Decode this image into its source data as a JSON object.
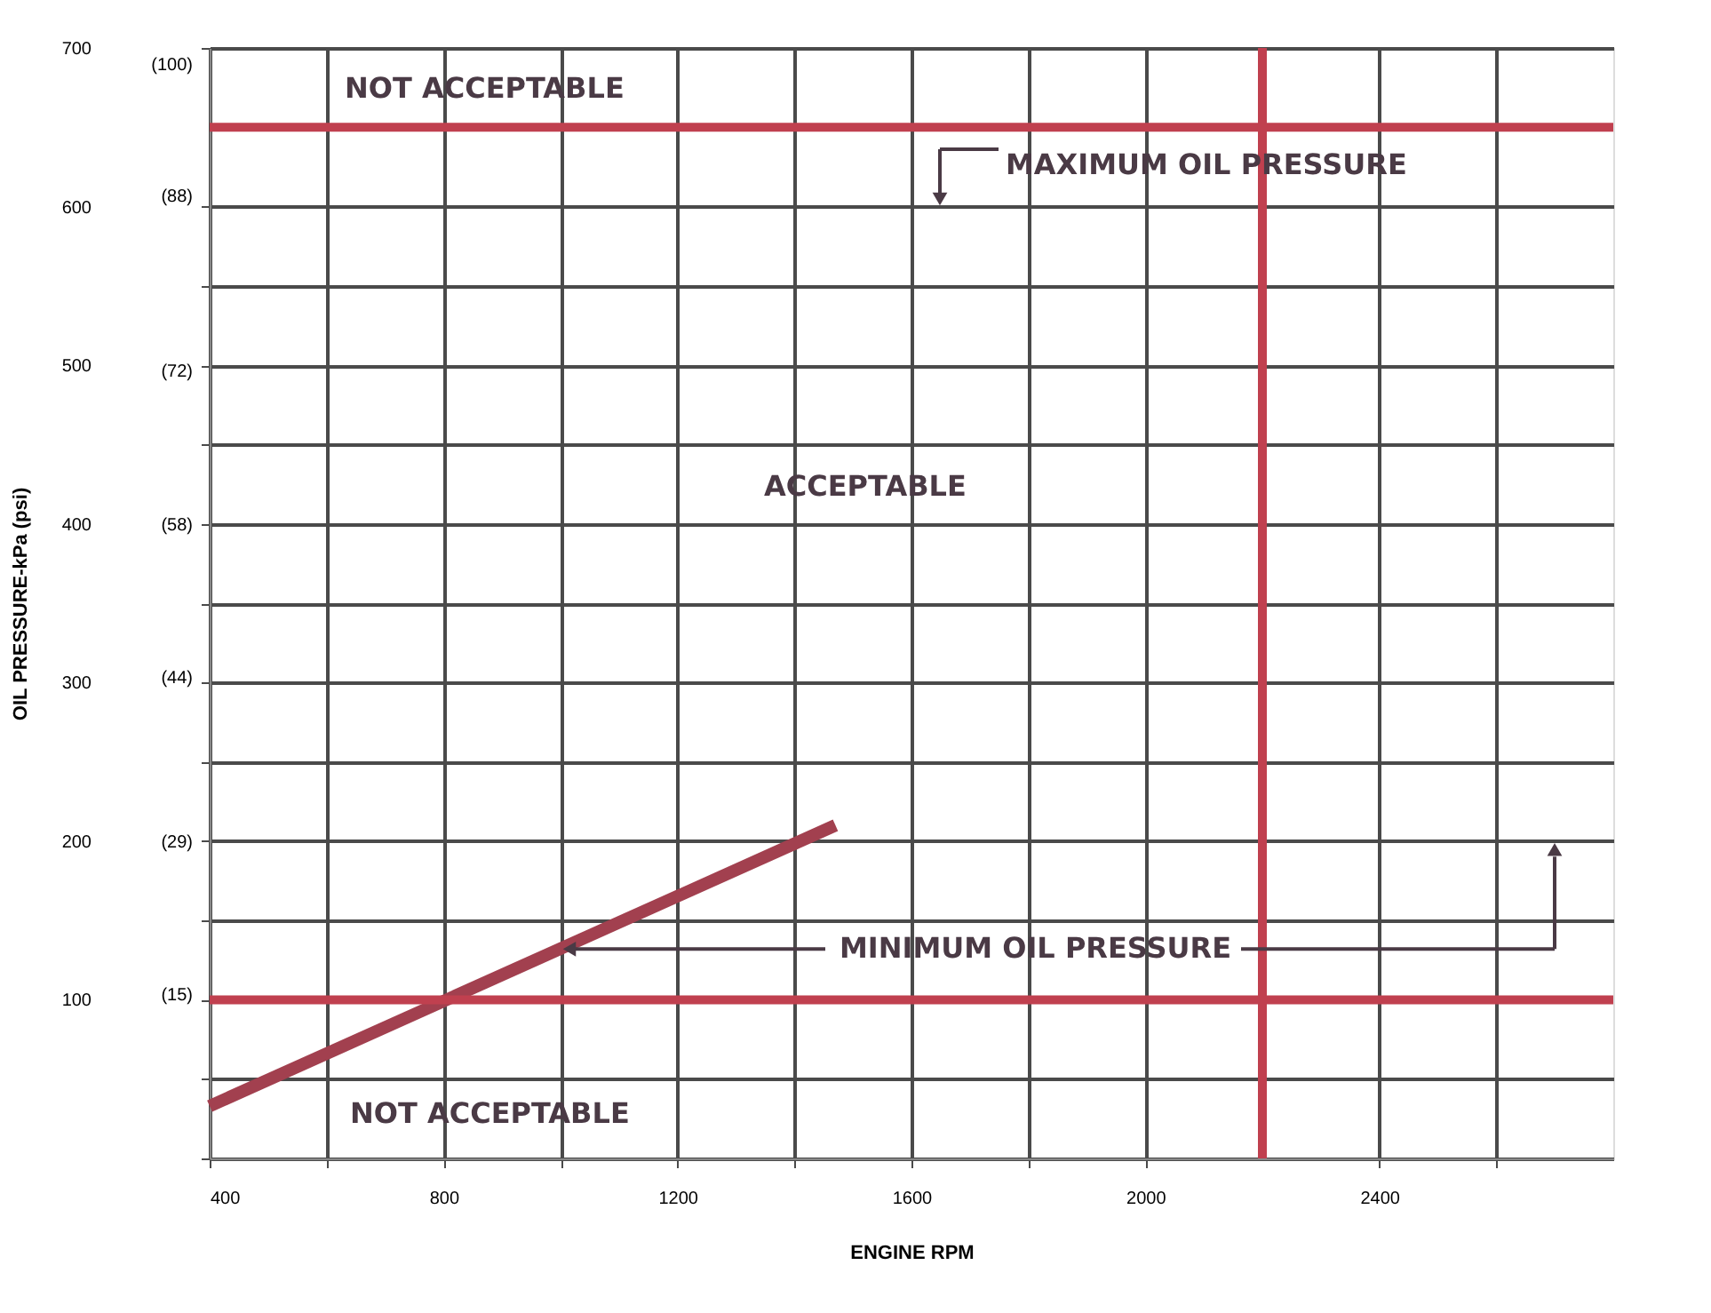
{
  "chart_data": {
    "type": "line",
    "x": [
      400,
      1470
    ],
    "series": [
      {
        "color": "#a2404f",
        "values": [
          33,
          210
        ]
      }
    ],
    "xlabel": "ENGINE RPM",
    "ylabel": "OIL PRESSURE-kPa (psi)",
    "xlim": [
      400,
      2800
    ],
    "xticks": [
      400,
      {
        "value": 600,
        "label": null
      },
      800,
      {
        "value": 1000,
        "label": null
      },
      1200,
      {
        "value": 1400,
        "label": null
      },
      1600,
      {
        "value": 1800,
        "label": null
      },
      2000,
      2400,
      {
        "value": 2600,
        "label": null
      }
    ],
    "ylim": [
      0,
      700
    ],
    "yticks": [
      {
        "value": 0,
        "label": null
      },
      {
        "value": 50,
        "label": null
      },
      100,
      {
        "value": 150,
        "label": null
      },
      200,
      {
        "value": 250,
        "label": null
      },
      300,
      {
        "value": 350,
        "label": null
      },
      400,
      {
        "value": 450,
        "label": null
      },
      500,
      {
        "value": 550,
        "label": null
      },
      600,
      700
    ],
    "y2lim": [
      0,
      101.5
    ],
    "y2ticks": [
      {
        "value": 15,
        "label": "(15)"
      },
      {
        "value": 29,
        "label": "(29)"
      },
      {
        "value": 44,
        "label": "(44)"
      },
      {
        "value": 58,
        "label": "(58)"
      },
      {
        "value": 72,
        "label": "(72)"
      },
      {
        "value": 88,
        "label": "(88)"
      },
      {
        "value": 100,
        "label": "(100)"
      }
    ],
    "ref_lines": [
      {
        "axis": "y",
        "value": 650,
        "color": "#c0404f"
      },
      {
        "axis": "y",
        "value": 100,
        "color": "#c0404f"
      },
      {
        "axis": "x",
        "value": 2200,
        "color": "#c0404f"
      }
    ],
    "annotations": [
      "NOT ACCEPTABLE",
      "ACCEPTABLE",
      "NOT ACCEPTABLE",
      "MAXIMUM OIL PRESSURE",
      {
        "text": "MINIMUM OIL PRESSURE",
        "x": 1000,
        "y": 132
      }
    ],
    "grid": true,
    "marker": "none",
    "line_style": "solid"
  }
}
